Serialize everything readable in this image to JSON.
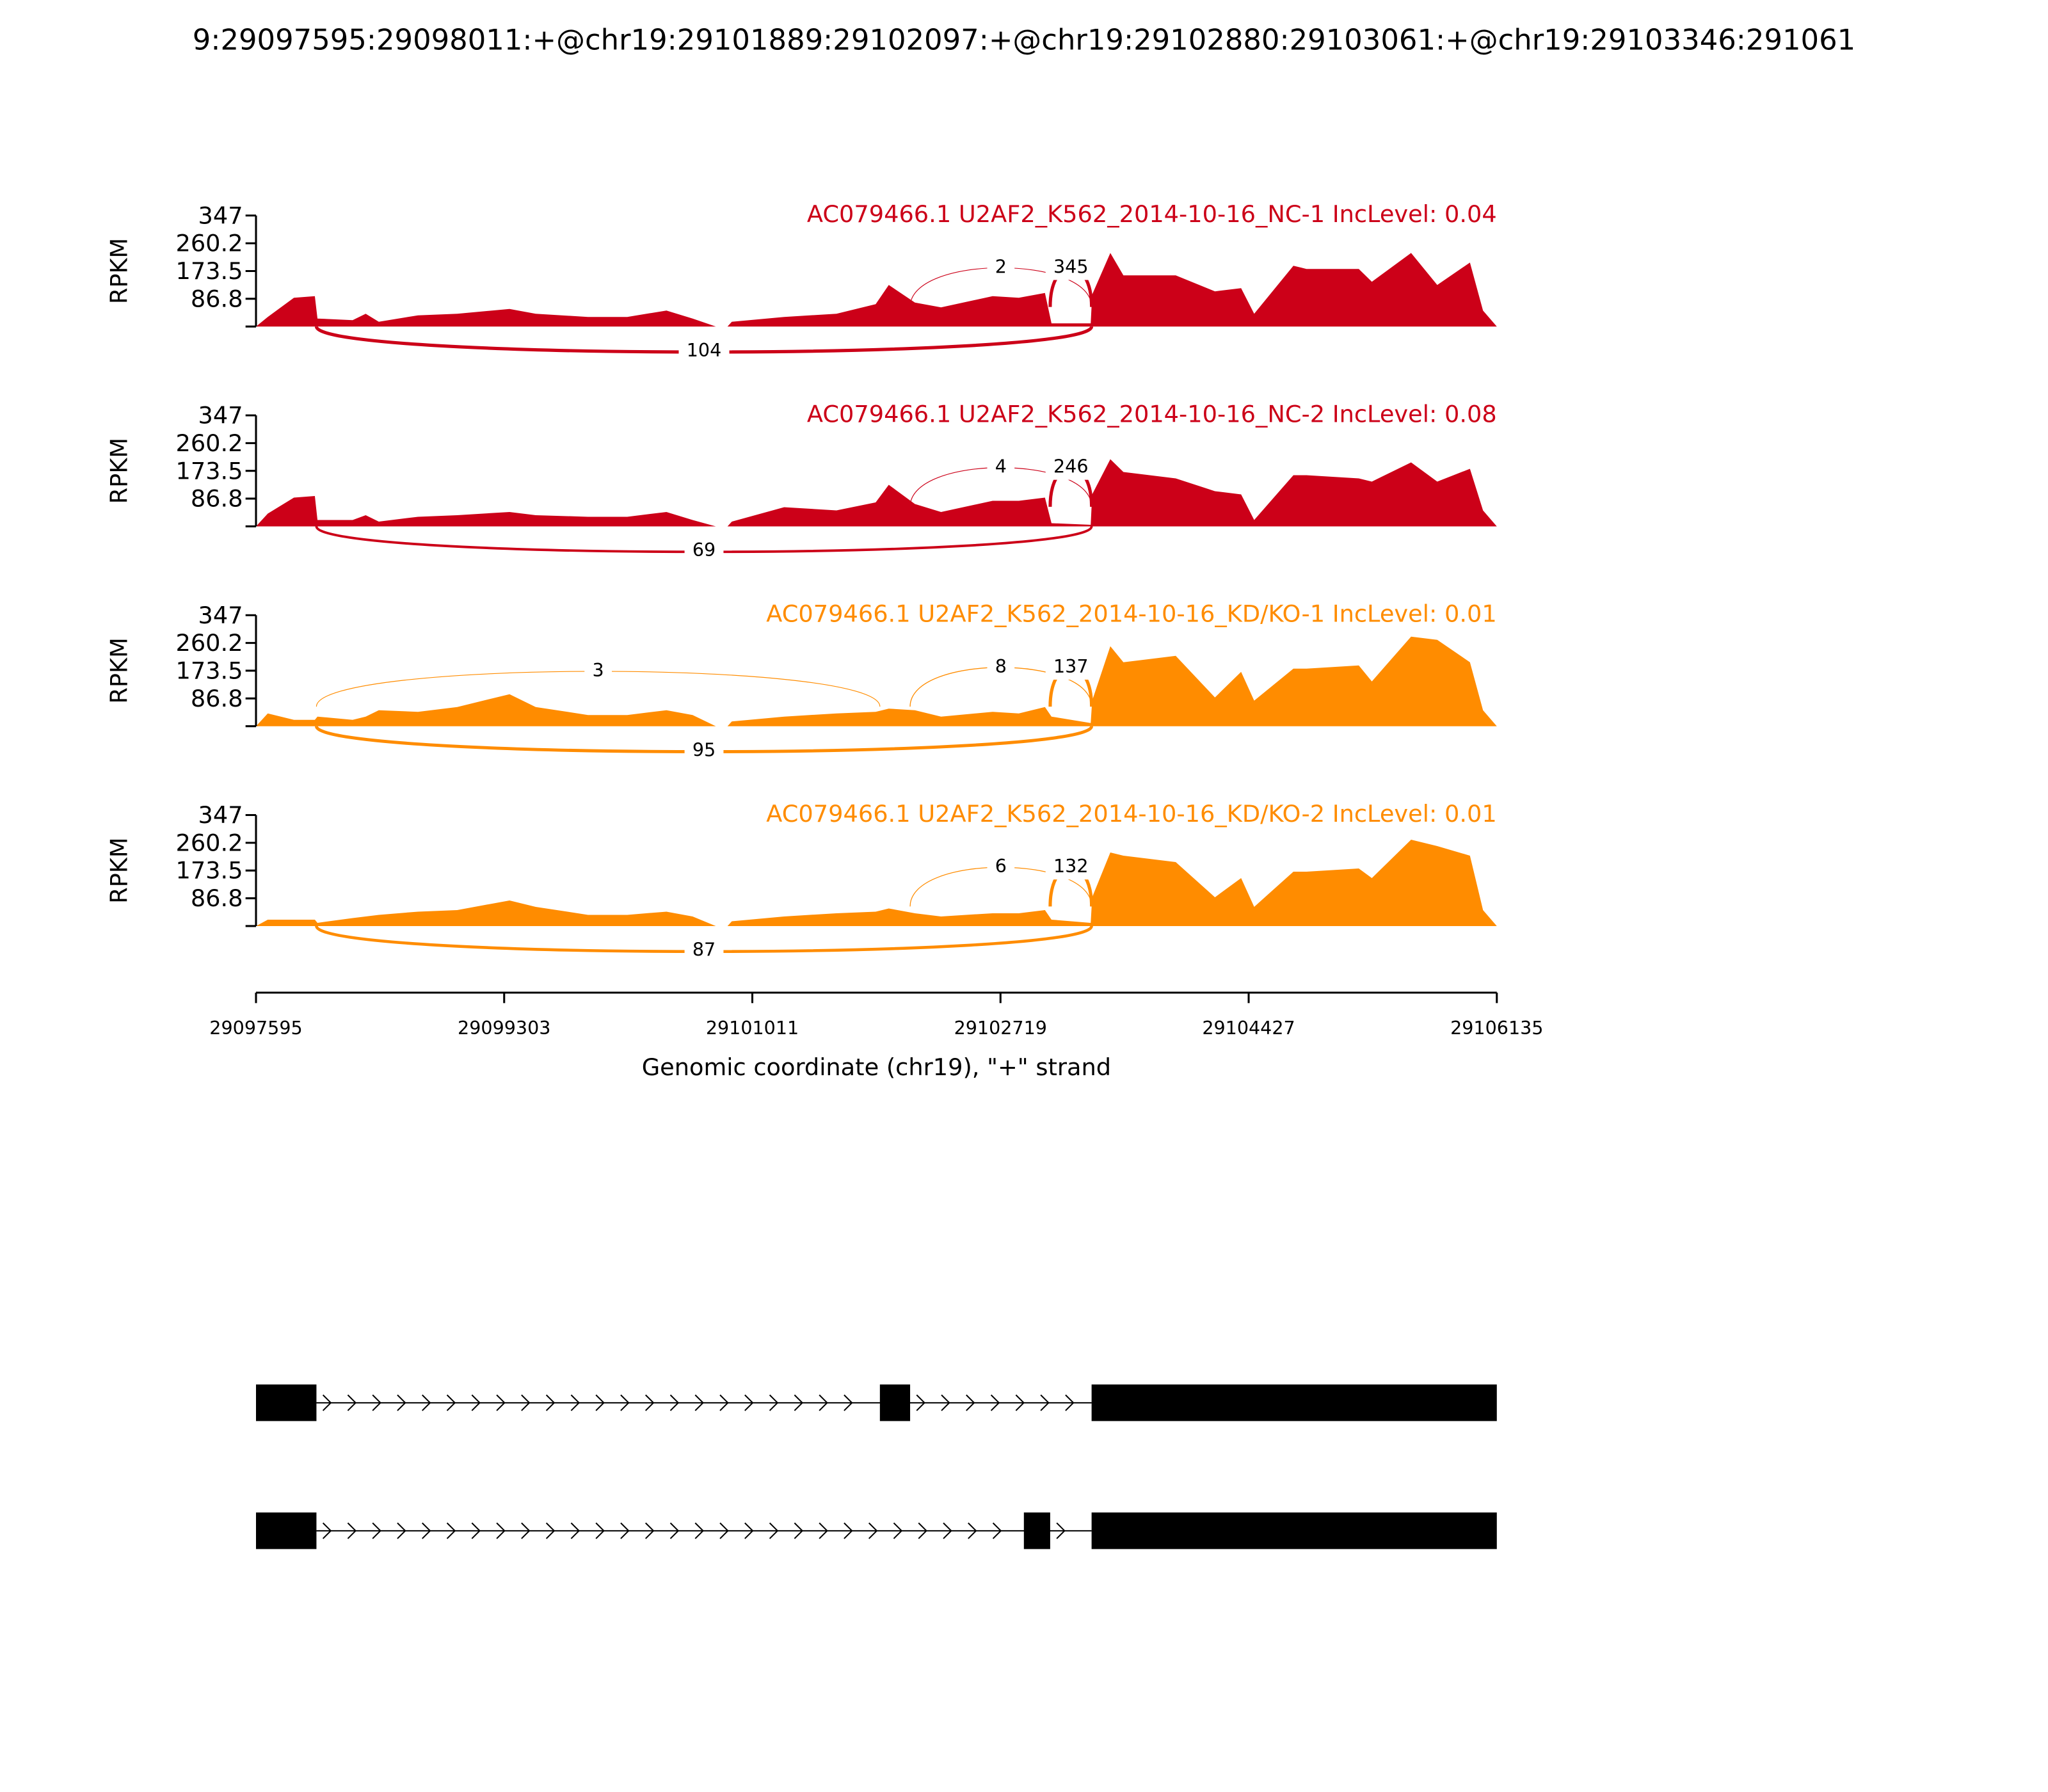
{
  "title": "9:29097595:29098011:+@chr19:29101889:29102097:+@chr19:29102880:29103061:+@chr19:29103346:291061",
  "x_axis": {
    "xlim": [
      29097595,
      29106135
    ],
    "xticks": [
      29097595,
      29099303,
      29101011,
      29102719,
      29104427,
      29106135
    ],
    "xlabel": "Genomic coordinate (chr19), \"+\" strand"
  },
  "chart_data": [
    {
      "type": "area",
      "title": "AC079466.1 U2AF2_K562_2014-10-16_NC-1 IncLevel: 0.04",
      "color": "#cc0018",
      "ylabel": "RPKM",
      "ylim": [
        0,
        347
      ],
      "yticks": [
        86.8,
        173.5,
        260.2,
        347
      ],
      "x": [
        29097595,
        29097676,
        29097856,
        29098000,
        29098018,
        29098260,
        29098350,
        29098440,
        29098710,
        29098980,
        29099340,
        29099520,
        29099880,
        29100150,
        29100420,
        29100600,
        29100760,
        29100795,
        29100840,
        29100870,
        29101230,
        29101590,
        29101860,
        29101950,
        29102130,
        29102310,
        29102665,
        29102845,
        29103025,
        29103070,
        29103340,
        29103350,
        29103475,
        29103565,
        29103925,
        29104195,
        29104375,
        29104465,
        29104735,
        29104825,
        29105185,
        29105275,
        29105545,
        29105725,
        29105950,
        29106040,
        29106135
      ],
      "values": [
        0,
        30,
        90,
        95,
        25,
        20,
        40,
        15,
        35,
        40,
        55,
        40,
        30,
        30,
        50,
        25,
        0,
        null,
        0,
        15,
        30,
        40,
        70,
        130,
        75,
        60,
        95,
        90,
        105,
        10,
        10,
        100,
        230,
        160,
        160,
        110,
        120,
        40,
        190,
        180,
        180,
        140,
        230,
        130,
        200,
        50,
        0
      ],
      "junctions": [
        {
          "start": 29098011,
          "end": 29103346,
          "count": 104
        },
        {
          "start": 29102097,
          "end": 29103346,
          "count": 2
        },
        {
          "start": 29103061,
          "end": 29103346,
          "count": 345
        }
      ]
    },
    {
      "type": "area",
      "title": "AC079466.1 U2AF2_K562_2014-10-16_NC-2 IncLevel: 0.08",
      "color": "#cc0018",
      "ylabel": "RPKM",
      "ylim": [
        0,
        347
      ],
      "yticks": [
        86.8,
        173.5,
        260.2,
        347
      ],
      "x": [
        29097595,
        29097676,
        29097856,
        29098000,
        29098018,
        29098260,
        29098350,
        29098440,
        29098710,
        29098980,
        29099340,
        29099520,
        29099880,
        29100150,
        29100420,
        29100600,
        29100760,
        29100795,
        29100840,
        29100870,
        29101230,
        29101590,
        29101860,
        29101950,
        29102130,
        29102310,
        29102665,
        29102845,
        29103025,
        29103070,
        29103340,
        29103350,
        29103475,
        29103565,
        29103925,
        29104195,
        29104375,
        29104465,
        29104735,
        29104825,
        29105185,
        29105275,
        29105545,
        29105725,
        29105950,
        29106040,
        29106135
      ],
      "values": [
        0,
        40,
        90,
        95,
        20,
        20,
        35,
        15,
        30,
        35,
        45,
        35,
        30,
        30,
        45,
        20,
        0,
        null,
        0,
        15,
        60,
        50,
        75,
        130,
        70,
        45,
        80,
        80,
        90,
        10,
        5,
        100,
        210,
        170,
        150,
        110,
        100,
        20,
        160,
        160,
        150,
        140,
        200,
        140,
        180,
        50,
        0
      ],
      "junctions": [
        {
          "start": 29098011,
          "end": 29103346,
          "count": 69
        },
        {
          "start": 29102097,
          "end": 29103346,
          "count": 4
        },
        {
          "start": 29103061,
          "end": 29103346,
          "count": 246
        }
      ]
    },
    {
      "type": "area",
      "title": "AC079466.1 U2AF2_K562_2014-10-16_KD/KO-1 IncLevel: 0.01",
      "color": "#ff8c00",
      "ylabel": "RPKM",
      "ylim": [
        0,
        347
      ],
      "yticks": [
        86.8,
        173.5,
        260.2,
        347
      ],
      "x": [
        29097595,
        29097676,
        29097856,
        29098000,
        29098018,
        29098260,
        29098350,
        29098440,
        29098710,
        29098980,
        29099340,
        29099520,
        29099880,
        29100150,
        29100420,
        29100600,
        29100760,
        29100795,
        29100840,
        29100870,
        29101230,
        29101590,
        29101860,
        29101950,
        29102130,
        29102310,
        29102665,
        29102845,
        29103025,
        29103070,
        29103340,
        29103350,
        29103475,
        29103565,
        29103925,
        29104195,
        29104375,
        29104465,
        29104735,
        29104825,
        29105185,
        29105275,
        29105545,
        29105725,
        29105950,
        29106040,
        29106135
      ],
      "values": [
        0,
        40,
        20,
        20,
        30,
        20,
        30,
        50,
        45,
        60,
        100,
        60,
        35,
        35,
        50,
        35,
        0,
        null,
        0,
        15,
        30,
        40,
        45,
        55,
        50,
        30,
        45,
        40,
        60,
        30,
        10,
        80,
        250,
        200,
        220,
        90,
        170,
        80,
        180,
        180,
        190,
        140,
        280,
        270,
        200,
        50,
        0
      ],
      "junctions": [
        {
          "start": 29098011,
          "end": 29103346,
          "count": 95
        },
        {
          "start": 29098011,
          "end": 29101889,
          "count": 3
        },
        {
          "start": 29102097,
          "end": 29103346,
          "count": 8
        },
        {
          "start": 29103061,
          "end": 29103346,
          "count": 137
        }
      ]
    },
    {
      "type": "area",
      "title": "AC079466.1 U2AF2_K562_2014-10-16_KD/KO-2 IncLevel: 0.01",
      "color": "#ff8c00",
      "ylabel": "RPKM",
      "ylim": [
        0,
        347
      ],
      "yticks": [
        86.8,
        173.5,
        260.2,
        347
      ],
      "x": [
        29097595,
        29097676,
        29097856,
        29098000,
        29098018,
        29098260,
        29098350,
        29098440,
        29098710,
        29098980,
        29099340,
        29099520,
        29099880,
        29100150,
        29100420,
        29100600,
        29100760,
        29100795,
        29100840,
        29100870,
        29101230,
        29101590,
        29101860,
        29101950,
        29102130,
        29102310,
        29102665,
        29102845,
        29103025,
        29103070,
        29103340,
        29103350,
        29103475,
        29103565,
        29103925,
        29104195,
        29104375,
        29104465,
        29104735,
        29104825,
        29105185,
        29105275,
        29105545,
        29105725,
        29105950,
        29106040,
        29106135
      ],
      "values": [
        0,
        20,
        20,
        20,
        10,
        25,
        30,
        35,
        45,
        50,
        80,
        60,
        35,
        35,
        45,
        30,
        0,
        null,
        0,
        15,
        30,
        40,
        45,
        55,
        40,
        30,
        40,
        40,
        50,
        20,
        10,
        90,
        230,
        220,
        200,
        90,
        150,
        60,
        170,
        170,
        180,
        150,
        270,
        250,
        220,
        50,
        0
      ],
      "junctions": [
        {
          "start": 29098011,
          "end": 29103346,
          "count": 87
        },
        {
          "start": 29102097,
          "end": 29103346,
          "count": 6
        },
        {
          "start": 29103061,
          "end": 29103346,
          "count": 132
        }
      ]
    }
  ],
  "transcripts": [
    {
      "exons": [
        [
          29097595,
          29098011
        ],
        [
          29101889,
          29102097
        ],
        [
          29103346,
          29106135
        ]
      ]
    },
    {
      "exons": [
        [
          29097595,
          29098011
        ],
        [
          29102880,
          29103061
        ],
        [
          29103346,
          29106135
        ]
      ]
    }
  ]
}
